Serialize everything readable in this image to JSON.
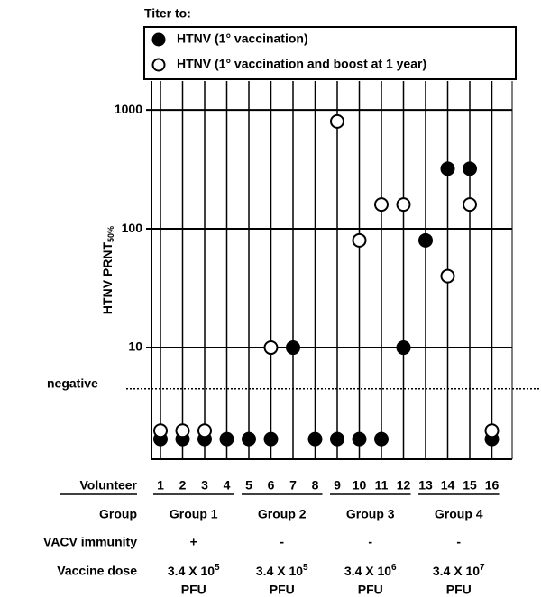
{
  "chart_data": {
    "type": "scatter",
    "title": "Titer to:",
    "ylabel": "HTNV PRNT",
    "ylabel_sub": "50%",
    "xlabel": "Volunteer",
    "x": [
      "1",
      "2",
      "3",
      "4",
      "5",
      "6",
      "7",
      "8",
      "9",
      "10",
      "11",
      "12",
      "13",
      "14",
      "15",
      "16"
    ],
    "series": [
      {
        "name": "HTNV (1° vaccination)",
        "color": "#000000",
        "filled": true,
        "values": [
          1.7,
          1.7,
          1.7,
          1.7,
          1.7,
          1.7,
          10,
          1.7,
          1.7,
          1.7,
          1.7,
          10,
          80,
          320,
          320,
          1.7
        ]
      },
      {
        "name": "HTNV (1° vaccination and boost at 1 year)",
        "color": "#000000",
        "filled": false,
        "values": [
          2,
          2,
          2,
          null,
          null,
          10,
          null,
          null,
          800,
          80,
          160,
          160,
          null,
          40,
          160,
          2
        ]
      }
    ],
    "log_y": true,
    "ylim": [
      1.15,
      1750
    ],
    "yticks": [
      10,
      100,
      1000
    ],
    "grid": true,
    "threshold": {
      "label": "negative",
      "value": 4.5
    },
    "table": [
      {
        "label": "Group",
        "cells": [
          "Group 1",
          "Group 2",
          "Group 3",
          "Group 4"
        ]
      },
      {
        "label": "VACV immunity",
        "cells": [
          "+",
          "-",
          "-",
          "-"
        ]
      },
      {
        "label": "Vaccine dose",
        "cells": [
          {
            "base": "3.4 X 10",
            "exp": "5",
            "unit": "PFU"
          },
          {
            "base": "3.4 X 10",
            "exp": "5",
            "unit": "PFU"
          },
          {
            "base": "3.4 X 10",
            "exp": "6",
            "unit": "PFU"
          },
          {
            "base": "3.4 X 10",
            "exp": "7",
            "unit": "PFU"
          }
        ]
      }
    ]
  }
}
